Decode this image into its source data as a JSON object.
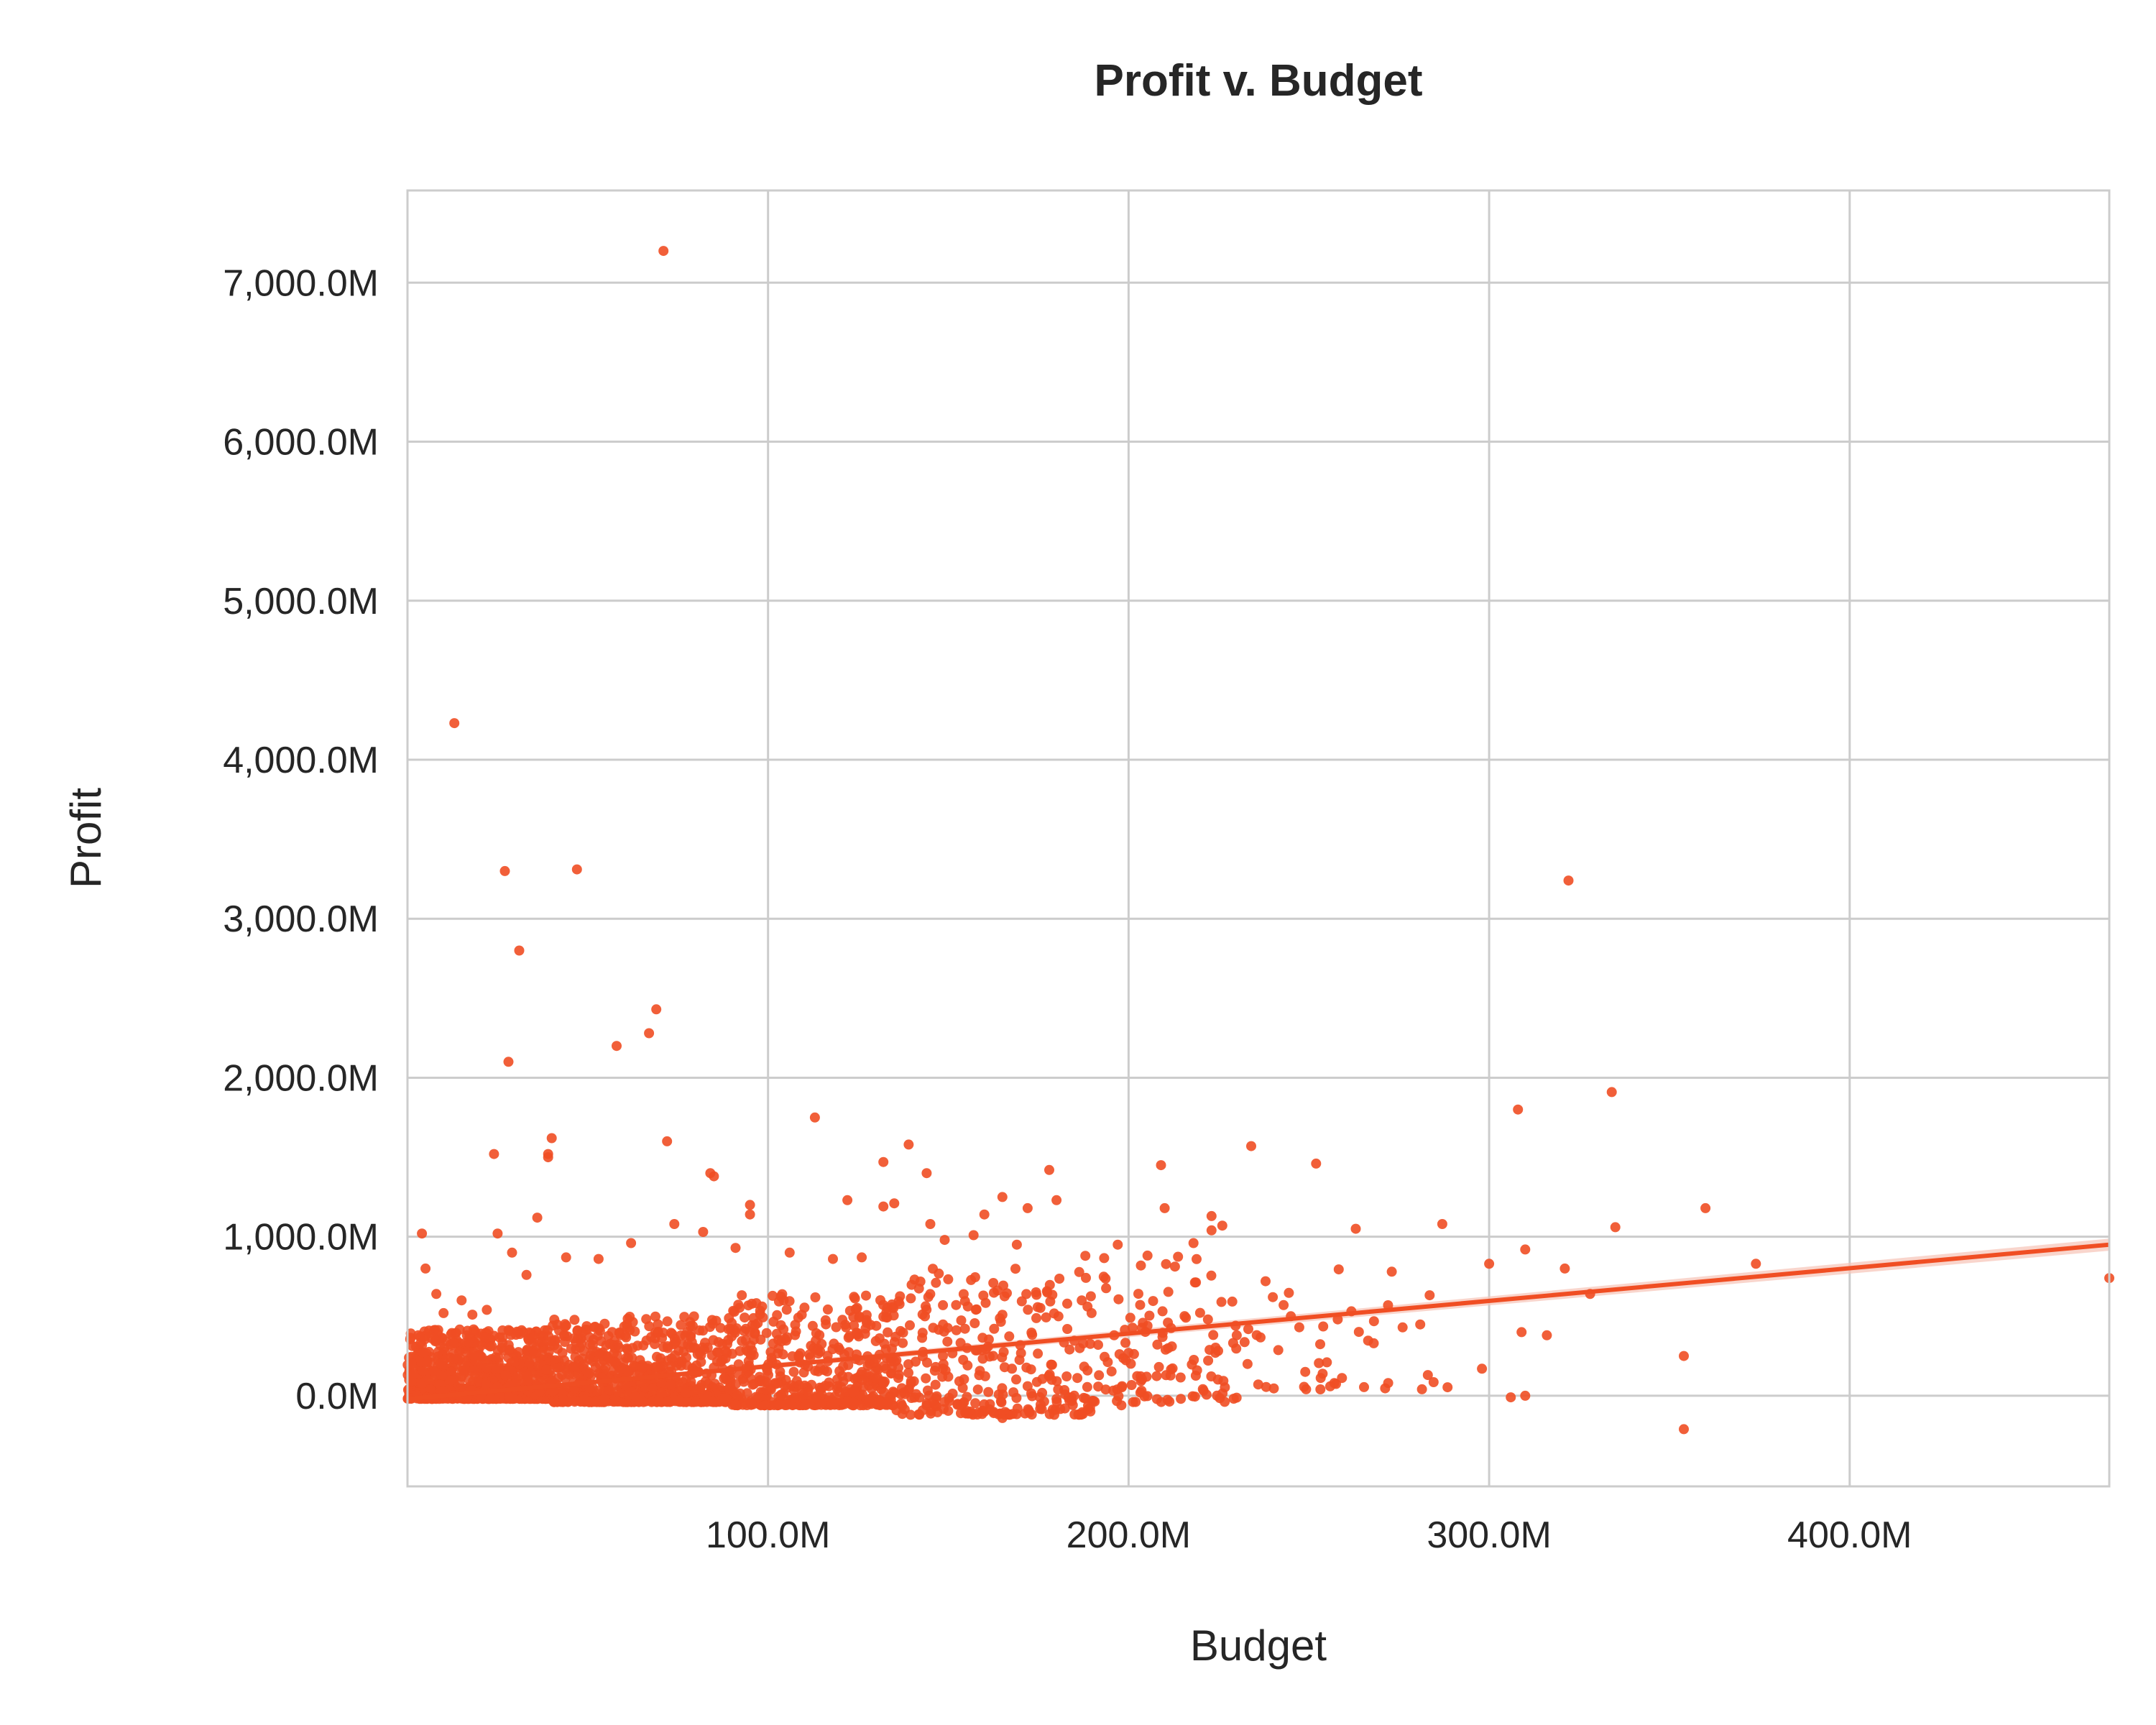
{
  "chart_data": {
    "type": "scatter",
    "title": "Profit v. Budget",
    "xlabel": "Budget",
    "ylabel": "Profit",
    "xlim": [
      0,
      472
    ],
    "ylim": [
      -570,
      7580
    ],
    "x_unit": "M",
    "y_unit": "M",
    "x_ticks": [
      100,
      200,
      300,
      400
    ],
    "x_tick_labels": [
      "100.0M",
      "200.0M",
      "300.0M",
      "400.0M"
    ],
    "y_ticks": [
      0,
      1000,
      2000,
      3000,
      4000,
      5000,
      6000,
      7000
    ],
    "y_tick_labels": [
      "0.0M",
      "1,000.0M",
      "2,000.0M",
      "3,000.0M",
      "4,000.0M",
      "5,000.0M",
      "6,000.0M",
      "7,000.0M"
    ],
    "grid": true,
    "colors": {
      "points": "#f04e23",
      "line": "#f04e23",
      "band": "#f7c3b6",
      "grid": "#cccccc",
      "frame": "#cccccc",
      "text": "#262626"
    },
    "regression": {
      "x": [
        0,
        472
      ],
      "y": [
        -20,
        950
      ],
      "band_halfwidth": [
        12,
        38
      ]
    },
    "series": [
      {
        "name": "Profit",
        "points": [
          [
            71,
            7200
          ],
          [
            13,
            4230
          ],
          [
            27,
            3300
          ],
          [
            47,
            3310
          ],
          [
            31,
            2800
          ],
          [
            28,
            2100
          ],
          [
            58,
            2200
          ],
          [
            67,
            2280
          ],
          [
            69,
            2430
          ],
          [
            322,
            3240
          ],
          [
            334,
            1910
          ],
          [
            308,
            1800
          ],
          [
            113,
            1750
          ],
          [
            40,
            1620
          ],
          [
            72,
            1600
          ],
          [
            39,
            1520
          ],
          [
            39,
            1500
          ],
          [
            24,
            1520
          ],
          [
            139,
            1580
          ],
          [
            132,
            1470
          ],
          [
            144,
            1400
          ],
          [
            84,
            1400
          ],
          [
            85,
            1380
          ],
          [
            178,
            1420
          ],
          [
            209,
            1450
          ],
          [
            234,
            1570
          ],
          [
            252,
            1460
          ],
          [
            4,
            1020
          ],
          [
            25,
            1020
          ],
          [
            36,
            1120
          ],
          [
            95,
            1200
          ],
          [
            95,
            1140
          ],
          [
            132,
            1190
          ],
          [
            135,
            1210
          ],
          [
            122,
            1230
          ],
          [
            145,
            1080
          ],
          [
            160,
            1140
          ],
          [
            165,
            1250
          ],
          [
            172,
            1180
          ],
          [
            180,
            1230
          ],
          [
            210,
            1180
          ],
          [
            223,
            1130
          ],
          [
            226,
            1070
          ],
          [
            223,
            1040
          ],
          [
            263,
            1050
          ],
          [
            287,
            1080
          ],
          [
            335,
            1060
          ],
          [
            360,
            1180
          ],
          [
            374,
            830
          ],
          [
            300,
            830
          ],
          [
            310,
            920
          ],
          [
            321,
            800
          ],
          [
            328,
            640
          ],
          [
            472,
            740
          ],
          [
            354,
            250
          ],
          [
            354,
            -210
          ],
          [
            306,
            -10
          ],
          [
            310,
            0
          ],
          [
            309,
            400
          ],
          [
            316,
            380
          ],
          [
            298,
            170
          ],
          [
            283,
            130
          ],
          [
            272,
            80
          ],
          [
            255,
            210
          ],
          [
            249,
            150
          ],
          [
            245,
            500
          ],
          [
            240,
            620
          ],
          [
            243,
            570
          ],
          [
            230,
            380
          ],
          [
            233,
            200
          ],
          [
            222,
            480
          ],
          [
            219,
            160
          ],
          [
            212,
            310
          ],
          [
            205,
            120
          ],
          [
            200,
            270
          ],
          [
            198,
            -60
          ],
          [
            196,
            380
          ],
          [
            187,
            600
          ],
          [
            183,
            420
          ],
          [
            180,
            -20
          ],
          [
            172,
            60
          ],
          [
            165,
            -140
          ],
          [
            160,
            -100
          ],
          [
            154,
            -50
          ],
          [
            150,
            120
          ],
          [
            144,
            -60
          ],
          [
            138,
            10
          ],
          [
            130,
            110
          ],
          [
            128,
            -40
          ],
          [
            124,
            30
          ],
          [
            5,
            800
          ],
          [
            8,
            640
          ],
          [
            10,
            520
          ],
          [
            15,
            600
          ],
          [
            18,
            510
          ],
          [
            22,
            540
          ],
          [
            29,
            900
          ],
          [
            33,
            760
          ],
          [
            44,
            870
          ],
          [
            53,
            860
          ],
          [
            62,
            960
          ],
          [
            74,
            1080
          ],
          [
            82,
            1030
          ],
          [
            91,
            930
          ],
          [
            106,
            900
          ],
          [
            118,
            860
          ],
          [
            126,
            870
          ],
          [
            149,
            980
          ],
          [
            157,
            1010
          ],
          [
            169,
            950
          ],
          [
            188,
            880
          ],
          [
            197,
            950
          ],
          [
            218,
            960
          ],
          [
            238,
            720
          ],
          [
            258,
            480
          ],
          [
            268,
            330
          ],
          [
            276,
            430
          ],
          [
            273,
            780
          ]
        ],
        "cloud": [
          {
            "x_range": [
              0,
              40
            ],
            "y_range": [
              -20,
              420
            ],
            "n": 900
          },
          {
            "x_range": [
              40,
              90
            ],
            "y_range": [
              -40,
              500
            ],
            "n": 700
          },
          {
            "x_range": [
              90,
              135
            ],
            "y_range": [
              -60,
              640
            ],
            "n": 450
          },
          {
            "x_range": [
              135,
              190
            ],
            "y_range": [
              -120,
              800
            ],
            "n": 280
          },
          {
            "x_range": [
              190,
              230
            ],
            "y_range": [
              -40,
              900
            ],
            "n": 110
          },
          {
            "x_range": [
              230,
              290
            ],
            "y_range": [
              40,
              820
            ],
            "n": 35
          }
        ]
      }
    ]
  }
}
